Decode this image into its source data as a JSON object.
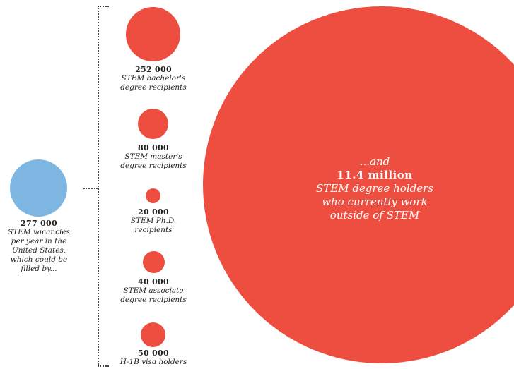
{
  "chart_data": {
    "type": "bubble",
    "colors": {
      "vacancies": "#7db6e0",
      "holders": "#ee4e40"
    },
    "vacancies": {
      "value": 277000,
      "value_label": "277 000",
      "description": "STEM vacancies\nper year in the\nUnited States,\nwhich could be\nfilled by..."
    },
    "sources": [
      {
        "value": 252000,
        "value_label": "252 000",
        "description": "STEM bachelor's\ndegree recipients"
      },
      {
        "value": 80000,
        "value_label": "80 000",
        "description": "STEM master's\ndegree recipients"
      },
      {
        "value": 20000,
        "value_label": "20 000",
        "description": "STEM Ph.D.\nrecipients"
      },
      {
        "value": 40000,
        "value_label": "40 000",
        "description": "STEM associate\ndegree recipients"
      },
      {
        "value": 50000,
        "value_label": "50 000",
        "description": "H-1B visa holders"
      }
    ],
    "outside": {
      "value": 11400000,
      "lead": "...and",
      "value_label": "11.4 million",
      "description": "STEM degree holders\nwho currently work\noutside of STEM"
    }
  }
}
